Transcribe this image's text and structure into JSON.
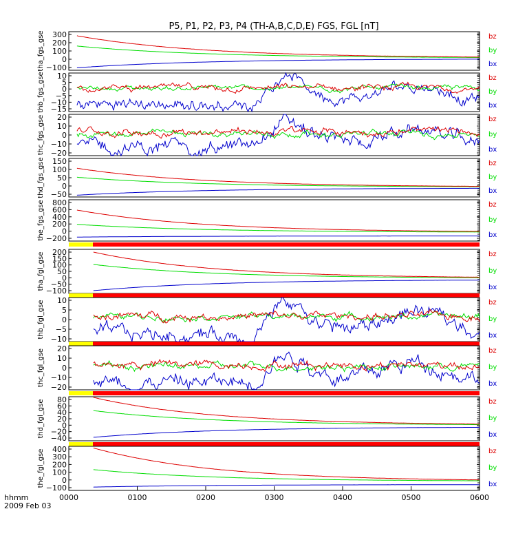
{
  "title": "P5, P1, P2, P3, P4 (TH-A,B,C,D,E) FGS, FGL [nT]",
  "footer": {
    "line1": "hhmm",
    "line2": "2009 Feb 03"
  },
  "colors": {
    "bz": "#dd0000",
    "by": "#00dd00",
    "bx": "#0000cc",
    "bar_red": "#ff0000",
    "bar_yellow": "#ffff00"
  },
  "chart_data": {
    "type": "line",
    "x_axis": {
      "ticks": [
        "0000",
        "0100",
        "0200",
        "0300",
        "0400",
        "0500",
        "0600"
      ],
      "range": [
        "0000",
        "0600"
      ]
    },
    "legend_labels": [
      "bz",
      "by",
      "bx"
    ],
    "panels": [
      {
        "ylabel": "tha_fgs_gse",
        "yticks": [
          "300",
          "200",
          "100",
          "0",
          "−100"
        ],
        "yrange": [
          -150,
          320
        ],
        "style": "decay",
        "bz": [
          270,
          0,
          15
        ],
        "by": [
          145,
          0,
          5
        ],
        "bx": [
          -120,
          -10,
          2
        ],
        "bar": false
      },
      {
        "ylabel": "thb_fgs_gse",
        "yticks": [
          "10",
          "5",
          "0",
          "−5",
          "−10",
          "−15"
        ],
        "yrange": [
          -16,
          11
        ],
        "style": "noisy",
        "bz": [
          0.6,
          1.5
        ],
        "by": [
          0.4,
          1.2
        ],
        "bx": [
          -11,
          3
        ],
        "bar": false
      },
      {
        "ylabel": "thc_fgs_gse",
        "yticks": [
          "20",
          "10",
          "0",
          "−10",
          "−20"
        ],
        "yrange": [
          -25,
          22
        ],
        "style": "noisy",
        "bz": [
          2,
          3
        ],
        "by": [
          0,
          2.5
        ],
        "bx": [
          -16,
          6
        ],
        "bar": false
      },
      {
        "ylabel": "thd_fgs_gse",
        "yticks": [
          "150",
          "100",
          "50",
          "0",
          "−50"
        ],
        "yrange": [
          -55,
          160
        ],
        "style": "decay",
        "bz": [
          105,
          0,
          4
        ],
        "by": [
          55,
          0,
          1
        ],
        "bx": [
          -45,
          -5,
          1
        ],
        "bar": false
      },
      {
        "ylabel": "the_fgs_gse",
        "yticks": [
          "800",
          "600",
          "400",
          "200",
          "0",
          "−200"
        ],
        "yrange": [
          -220,
          820
        ],
        "style": "decay",
        "bz": [
          560,
          0,
          20
        ],
        "by": [
          200,
          0,
          10
        ],
        "bx": [
          -120,
          -90,
          3
        ],
        "bar": false
      },
      {
        "ylabel": "tha_fgl_gse",
        "yticks": [
          "200",
          "150",
          "100",
          "50",
          "0",
          "−50",
          "−100"
        ],
        "yrange": [
          -110,
          210
        ],
        "style": "decay",
        "bz": [
          190,
          0,
          8
        ],
        "by": [
          100,
          0,
          4
        ],
        "bx": [
          -90,
          -10,
          2
        ],
        "bar": true
      },
      {
        "ylabel": "thb_fgl_gse",
        "yticks": [
          "10",
          "5",
          "0",
          "−5",
          "−10"
        ],
        "yrange": [
          -14,
          11
        ],
        "style": "noisy",
        "bz": [
          0.5,
          1.5
        ],
        "by": [
          0.3,
          1.2
        ],
        "bx": [
          -10,
          3
        ],
        "bar": true
      },
      {
        "ylabel": "thc_fgl_gse",
        "yticks": [
          "20",
          "10",
          "0",
          "−10",
          "−20"
        ],
        "yrange": [
          -25,
          22
        ],
        "style": "noisy",
        "bz": [
          2,
          3
        ],
        "by": [
          0,
          2.5
        ],
        "bx": [
          -17,
          6
        ],
        "bar": true
      },
      {
        "ylabel": "thd_fgl_gse",
        "yticks": [
          "80",
          "60",
          "40",
          "20",
          "0",
          "−20",
          "−40"
        ],
        "yrange": [
          -45,
          82
        ],
        "style": "decay",
        "bz": [
          80,
          0,
          3
        ],
        "by": [
          42,
          0,
          2
        ],
        "bx": [
          -35,
          -5,
          1
        ],
        "bar": true
      },
      {
        "ylabel": "the_fgl_gse",
        "yticks": [
          "400",
          "300",
          "200",
          "100",
          "0",
          "−100"
        ],
        "yrange": [
          -110,
          420
        ],
        "style": "decay",
        "bz": [
          400,
          0,
          12
        ],
        "by": [
          140,
          0,
          6
        ],
        "bx": [
          -70,
          -40,
          2
        ],
        "bar": true
      }
    ]
  }
}
